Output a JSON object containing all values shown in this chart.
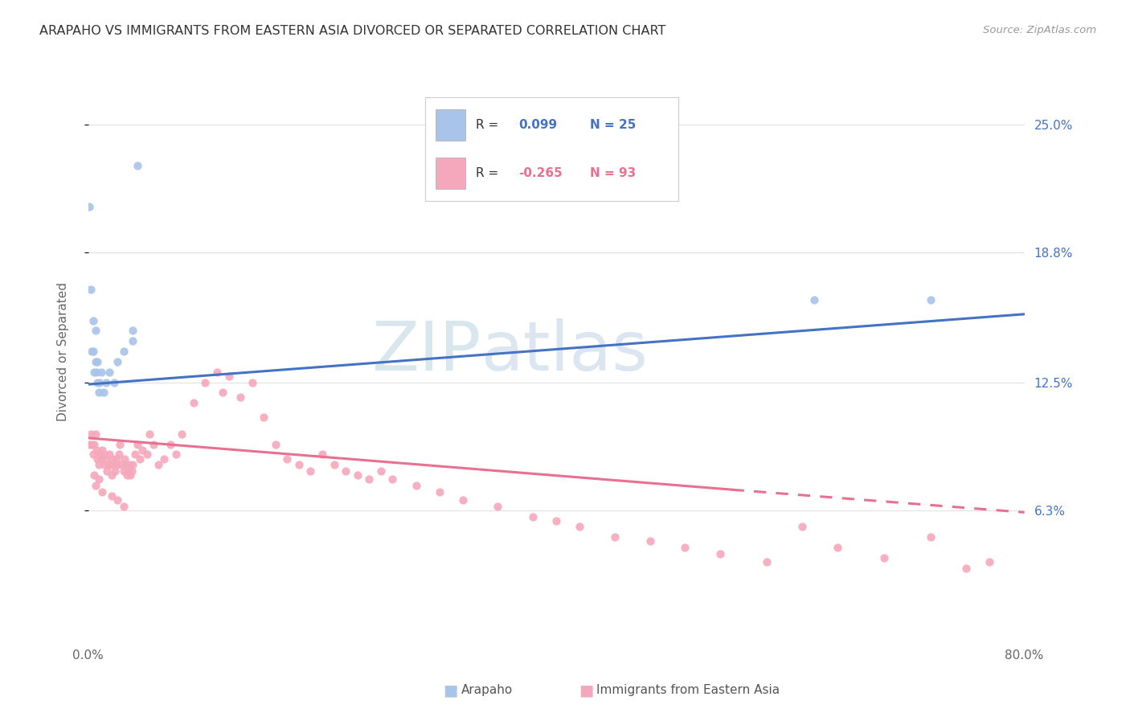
{
  "title": "ARAPAHO VS IMMIGRANTS FROM EASTERN ASIA DIVORCED OR SEPARATED CORRELATION CHART",
  "source": "Source: ZipAtlas.com",
  "ylabel": "Divorced or Separated",
  "xlim": [
    0.0,
    0.8
  ],
  "ylim": [
    0.0,
    0.28
  ],
  "yticks": [
    0.063,
    0.125,
    0.188,
    0.25
  ],
  "ytick_labels": [
    "6.3%",
    "12.5%",
    "18.8%",
    "25.0%"
  ],
  "xtick_labels": [
    "0.0%",
    "80.0%"
  ],
  "xtick_pos": [
    0.0,
    0.8
  ],
  "arapaho_color": "#a8c4e8",
  "eastern_asia_color": "#f5a8bc",
  "arapaho_line_color": "#4472c4",
  "eastern_asia_line_color": "#e87090",
  "grid_color": "#e0e0e0",
  "watermark_color": "#d8e8f0",
  "arapaho_r": 0.099,
  "arapaho_n": 25,
  "eastern_asia_r": -0.265,
  "eastern_asia_n": 93,
  "arapaho_line_x0": 0.0,
  "arapaho_line_y0": 0.124,
  "arapaho_line_x1": 0.8,
  "arapaho_line_y1": 0.158,
  "eastern_asia_line_x0": 0.0,
  "eastern_asia_line_y0": 0.098,
  "eastern_asia_line_x1_solid": 0.55,
  "eastern_asia_line_y1_solid": 0.073,
  "eastern_asia_line_x1_dash": 0.8,
  "eastern_asia_line_y1_dash": 0.062,
  "arapaho_points_x": [
    0.001,
    0.002,
    0.003,
    0.004,
    0.004,
    0.005,
    0.006,
    0.006,
    0.007,
    0.008,
    0.008,
    0.009,
    0.01,
    0.011,
    0.013,
    0.015,
    0.018,
    0.022,
    0.025,
    0.03,
    0.038,
    0.042,
    0.038,
    0.62,
    0.72
  ],
  "arapaho_points_y": [
    0.21,
    0.17,
    0.14,
    0.155,
    0.14,
    0.13,
    0.15,
    0.135,
    0.13,
    0.125,
    0.135,
    0.12,
    0.125,
    0.13,
    0.12,
    0.125,
    0.13,
    0.125,
    0.135,
    0.14,
    0.15,
    0.23,
    0.145,
    0.165,
    0.165
  ],
  "ea_points_x": [
    0.001,
    0.002,
    0.003,
    0.004,
    0.005,
    0.006,
    0.007,
    0.008,
    0.009,
    0.01,
    0.011,
    0.012,
    0.013,
    0.014,
    0.015,
    0.016,
    0.017,
    0.018,
    0.019,
    0.02,
    0.021,
    0.022,
    0.023,
    0.024,
    0.025,
    0.026,
    0.027,
    0.028,
    0.03,
    0.031,
    0.032,
    0.033,
    0.034,
    0.035,
    0.036,
    0.037,
    0.038,
    0.04,
    0.042,
    0.044,
    0.046,
    0.05,
    0.052,
    0.056,
    0.06,
    0.065,
    0.07,
    0.075,
    0.08,
    0.09,
    0.1,
    0.11,
    0.115,
    0.12,
    0.13,
    0.14,
    0.15,
    0.16,
    0.17,
    0.18,
    0.19,
    0.2,
    0.21,
    0.22,
    0.23,
    0.24,
    0.25,
    0.26,
    0.28,
    0.3,
    0.32,
    0.35,
    0.38,
    0.4,
    0.42,
    0.45,
    0.48,
    0.51,
    0.54,
    0.58,
    0.61,
    0.64,
    0.68,
    0.72,
    0.75,
    0.77,
    0.005,
    0.006,
    0.009,
    0.012,
    0.02,
    0.025,
    0.03
  ],
  "ea_points_y": [
    0.095,
    0.1,
    0.095,
    0.09,
    0.095,
    0.1,
    0.092,
    0.088,
    0.085,
    0.09,
    0.088,
    0.092,
    0.09,
    0.085,
    0.088,
    0.082,
    0.085,
    0.09,
    0.085,
    0.08,
    0.088,
    0.085,
    0.082,
    0.088,
    0.085,
    0.09,
    0.095,
    0.085,
    0.082,
    0.088,
    0.085,
    0.08,
    0.082,
    0.085,
    0.08,
    0.082,
    0.085,
    0.09,
    0.095,
    0.088,
    0.092,
    0.09,
    0.1,
    0.095,
    0.085,
    0.088,
    0.095,
    0.09,
    0.1,
    0.115,
    0.125,
    0.13,
    0.12,
    0.128,
    0.118,
    0.125,
    0.108,
    0.095,
    0.088,
    0.085,
    0.082,
    0.09,
    0.085,
    0.082,
    0.08,
    0.078,
    0.082,
    0.078,
    0.075,
    0.072,
    0.068,
    0.065,
    0.06,
    0.058,
    0.055,
    0.05,
    0.048,
    0.045,
    0.042,
    0.038,
    0.055,
    0.045,
    0.04,
    0.05,
    0.035,
    0.038,
    0.08,
    0.075,
    0.078,
    0.072,
    0.07,
    0.068,
    0.065
  ]
}
